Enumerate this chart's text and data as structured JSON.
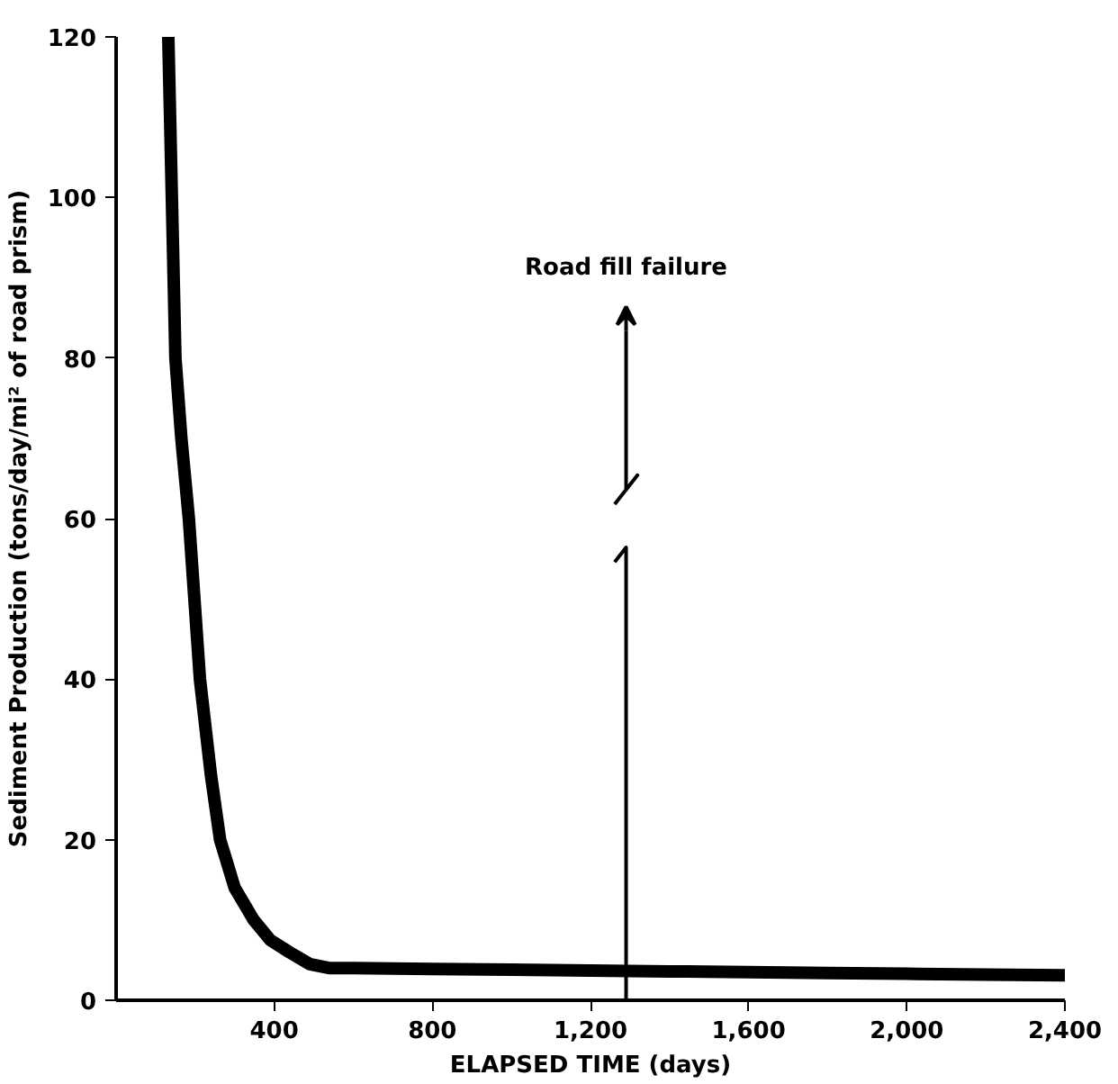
{
  "chart_data": {
    "type": "line",
    "xlabel": "ELAPSED TIME (days)",
    "ylabel": "Sediment Production (tons/day/mi² of road prism)",
    "x": [
      132,
      141,
      150,
      165,
      184,
      212,
      240,
      263,
      300,
      348,
      390,
      438,
      490,
      541,
      600,
      800,
      1000,
      1200,
      1400,
      1600,
      1800,
      2000,
      2200,
      2400
    ],
    "values": [
      120,
      100,
      80,
      70,
      60,
      40,
      28,
      20,
      14,
      10,
      7.5,
      6,
      4.5,
      4,
      4,
      3.9,
      3.8,
      3.7,
      3.6,
      3.5,
      3.4,
      3.3,
      3.2,
      3.1
    ],
    "color": "#000000",
    "marker": "none",
    "line_style": "solid",
    "xlim": [
      0,
      2400
    ],
    "ylim": [
      0,
      120
    ],
    "xticks": [
      400,
      800,
      {
        "value": 1200,
        "label": "1,200"
      },
      {
        "value": 1600,
        "label": "1,600"
      },
      {
        "value": 2000,
        "label": "2,000"
      },
      {
        "value": 2400,
        "label": "2,400"
      }
    ],
    "yticks": [
      0,
      20,
      40,
      60,
      80,
      100,
      120
    ],
    "grid": false,
    "ref_lines": [
      {
        "axis": "x",
        "value": 1290,
        "label": "Road fill failure"
      }
    ]
  }
}
